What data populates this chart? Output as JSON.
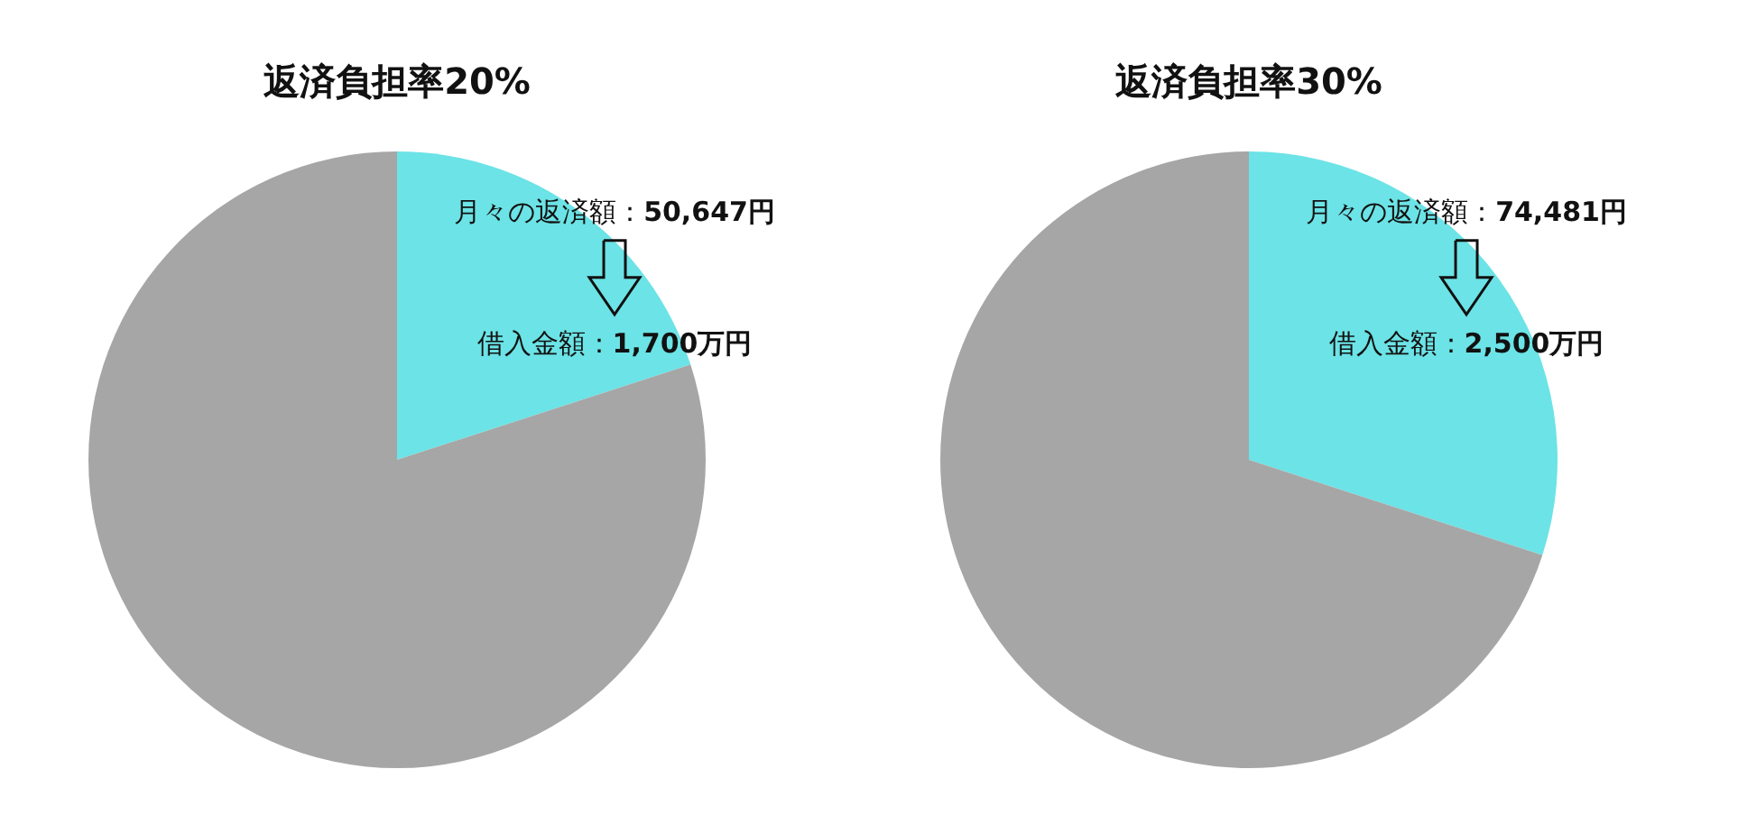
{
  "chart_data": [
    {
      "type": "pie",
      "title": "返済負担率20%",
      "categories": [
        null,
        null
      ],
      "values": [
        20,
        80
      ],
      "colors": [
        "#6ce3e6",
        "#a6a6a6"
      ],
      "annotations": [
        "月々の返済額：**50,647円**",
        "借入金額：**1,700万円**"
      ]
    },
    {
      "type": "pie",
      "title": "返済負担率30%",
      "categories": [
        null,
        null
      ],
      "values": [
        30,
        70
      ],
      "colors": [
        "#6ce3e6",
        "#a6a6a6"
      ],
      "annotations": [
        "月々の返済額：**74,481円**",
        "借入金額：**2,500万円**"
      ]
    }
  ]
}
